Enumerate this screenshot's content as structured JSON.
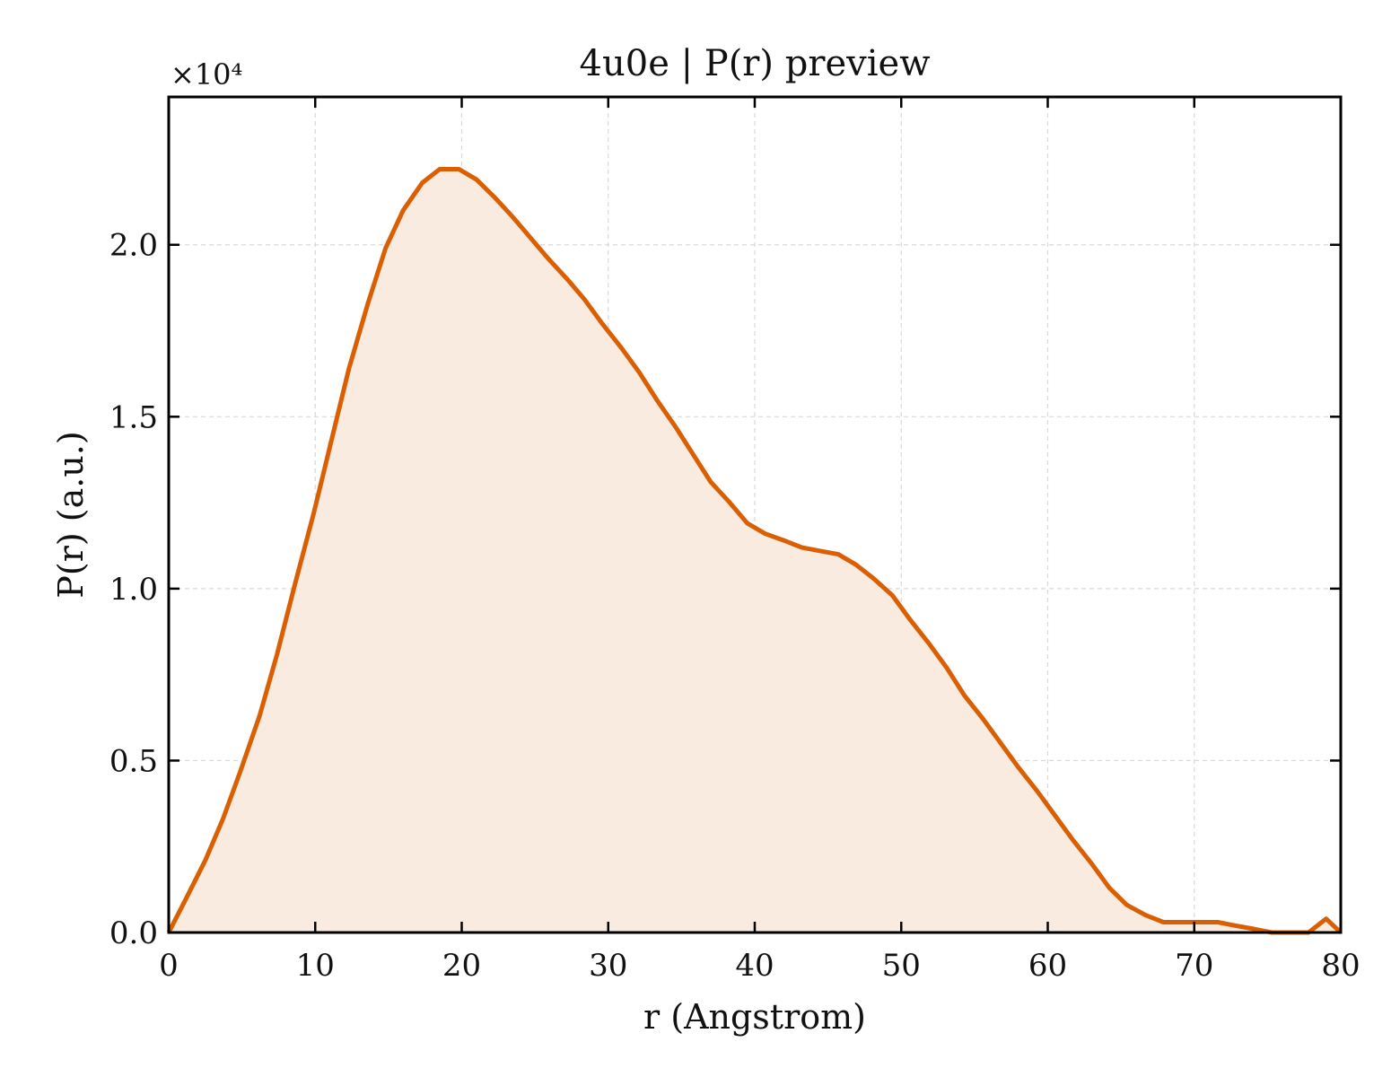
{
  "chart_data": {
    "type": "area",
    "title": "4u0e | P(r) preview",
    "xlabel": "r (Angstrom)",
    "ylabel": "P(r) (a.u.)",
    "y_offset_label": "×10⁴",
    "y_scale_factor": 10000,
    "xlim": [
      0,
      80
    ],
    "ylim": [
      0,
      2.43
    ],
    "x_ticks": [
      0,
      10,
      20,
      30,
      40,
      50,
      60,
      70,
      80
    ],
    "x_tick_labels": [
      "0",
      "10",
      "20",
      "30",
      "40",
      "50",
      "60",
      "70",
      "80"
    ],
    "y_ticks": [
      0.0,
      0.5,
      1.0,
      1.5,
      2.0
    ],
    "y_tick_labels": [
      "0.0",
      "0.5",
      "1.0",
      "1.5",
      "2.0"
    ],
    "grid": true,
    "colors": {
      "line": "#d95f02",
      "fill": "#f9ebe0",
      "grid": "#d9d9d9"
    },
    "series": [
      {
        "x": [
          0,
          1.2,
          2.5,
          3.7,
          4.9,
          6.2,
          7.4,
          8.6,
          9.9,
          11.1,
          12.3,
          13.6,
          14.8,
          16.0,
          17.3,
          18.5,
          19.8,
          21.0,
          22.2,
          23.5,
          24.7,
          25.9,
          27.2,
          28.4,
          29.6,
          30.9,
          32.1,
          33.3,
          34.6,
          35.8,
          37.0,
          38.3,
          39.5,
          40.7,
          42.0,
          43.2,
          44.4,
          45.7,
          46.9,
          48.1,
          49.4,
          50.6,
          51.9,
          53.1,
          54.3,
          55.6,
          56.8,
          58.0,
          59.3,
          60.5,
          61.7,
          63.0,
          64.2,
          65.4,
          66.7,
          67.9,
          69.1,
          70.4,
          71.6,
          72.8,
          74.1,
          75.3,
          76.5,
          77.8,
          79.0,
          80.0
        ],
        "y": [
          0.0,
          0.1,
          0.21,
          0.33,
          0.47,
          0.63,
          0.81,
          1.01,
          1.22,
          1.43,
          1.64,
          1.83,
          1.99,
          2.1,
          2.18,
          2.22,
          2.22,
          2.19,
          2.14,
          2.08,
          2.02,
          1.96,
          1.9,
          1.84,
          1.77,
          1.7,
          1.63,
          1.55,
          1.47,
          1.39,
          1.31,
          1.25,
          1.19,
          1.16,
          1.14,
          1.12,
          1.11,
          1.1,
          1.07,
          1.03,
          0.98,
          0.91,
          0.84,
          0.77,
          0.69,
          0.62,
          0.55,
          0.48,
          0.41,
          0.34,
          0.27,
          0.2,
          0.13,
          0.08,
          0.05,
          0.03,
          0.03,
          0.03,
          0.03,
          0.02,
          0.01,
          0.0,
          0.0,
          0.0,
          0.04,
          0.0
        ]
      }
    ]
  }
}
